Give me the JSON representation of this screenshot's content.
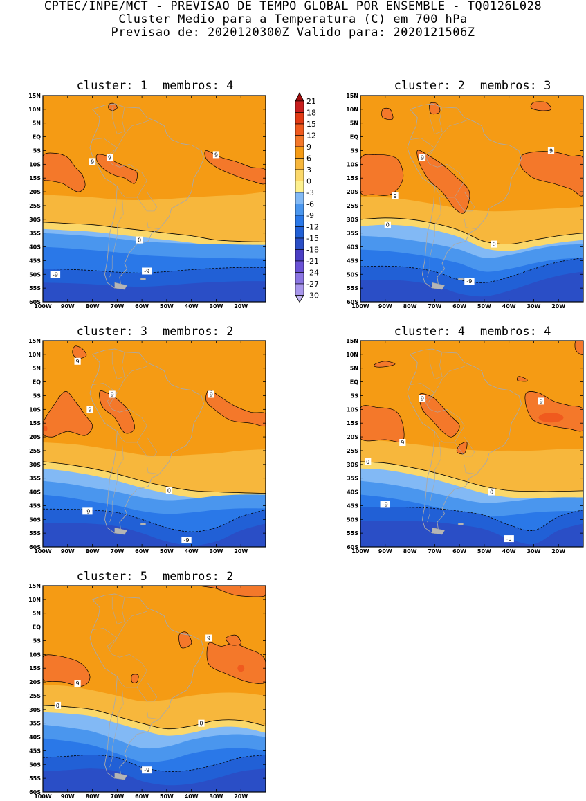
{
  "header": {
    "title_line1": "CPTEC/INPE/MCT - PREVISAO DE TEMPO GLOBAL POR ENSEMBLE - TQ0126L028",
    "title_line2": "Cluster Medio para a Temperatura (C) em 700 hPa",
    "title_line3": "Previsao de: 2020120300Z   Valido para: 2020121506Z"
  },
  "chart_data": {
    "type": "contour_map",
    "variable": "Temperatura (C) em 700 hPa",
    "x_ticks": [
      "100W",
      "90W",
      "80W",
      "70W",
      "60W",
      "50W",
      "40W",
      "30W",
      "20W"
    ],
    "y_ticks": [
      "15N",
      "10N",
      "5N",
      "EQ",
      "5S",
      "10S",
      "15S",
      "20S",
      "25S",
      "30S",
      "35S",
      "40S",
      "45S",
      "50S",
      "55S",
      "60S"
    ],
    "lon_range": [
      -100,
      -10
    ],
    "lat_range": [
      -60,
      15
    ],
    "colorbar": {
      "levels": [
        "21",
        "18",
        "15",
        "12",
        "9",
        "6",
        "3",
        "0",
        "-3",
        "-6",
        "-9",
        "-12",
        "-15",
        "-18",
        "-21",
        "-24",
        "-27",
        "-30"
      ],
      "colors": [
        "#a10d0d",
        "#c81e1e",
        "#e23a14",
        "#f05a1e",
        "#f4782a",
        "#f59b14",
        "#f7b73c",
        "#fbd86a",
        "#fdf08e",
        "#82b9f5",
        "#4a96ee",
        "#2a78e8",
        "#2160d6",
        "#2a4ec6",
        "#4a3ec4",
        "#6a52d6",
        "#8a74e2",
        "#a896ec",
        "#c6baf4"
      ]
    },
    "panels": [
      {
        "title": "cluster: 1",
        "members_label": "membros: 4",
        "contour_labels": [
          "9",
          "9",
          "9",
          "0",
          "-9",
          "-9"
        ],
        "boundaries_lat": {
          "b0": [
            -31,
            -31.5,
            -32,
            -33,
            -34,
            -35,
            -36,
            -37.5,
            -38,
            -38.2
          ],
          "b3": [
            -21,
            -21.5,
            -22,
            -22.8,
            -23,
            -22.6,
            -22,
            -21.5,
            -21,
            -20
          ],
          "b6": [
            -35,
            -35.5,
            -36.2,
            -37,
            -38,
            -38.5,
            -38.8,
            -39,
            -39.2,
            -39.3
          ],
          "b9": [
            -48,
            -48.2,
            -48.6,
            -49.2,
            -49.5,
            -49,
            -48.3,
            -47.8,
            -47.5,
            -47.5
          ]
        }
      },
      {
        "title": "cluster: 2",
        "members_label": "membros: 3",
        "contour_labels": [
          "9",
          "9",
          "0",
          "0",
          "-9"
        ],
        "boundaries_lat": {
          "b0": [
            -30,
            -29.5,
            -30,
            -31.5,
            -34,
            -38,
            -39,
            -37.5,
            -36,
            -35
          ],
          "b3": [
            -22,
            -22,
            -23,
            -24.5,
            -26,
            -27,
            -27,
            -26.5,
            -26,
            -25.5
          ],
          "b6": [
            -36,
            -36.5,
            -37.5,
            -39,
            -41,
            -44,
            -43,
            -41,
            -39.5,
            -39
          ],
          "b9": [
            -47.2,
            -47,
            -47.5,
            -49,
            -52,
            -53,
            -51,
            -48,
            -45.5,
            -44
          ]
        }
      },
      {
        "title": "cluster: 3",
        "members_label": "membros: 2",
        "contour_labels": [
          "9",
          "9",
          "9",
          "9",
          "0",
          "-9",
          "-9"
        ],
        "boundaries_lat": {
          "b0": [
            -29,
            -30,
            -31.5,
            -33.5,
            -36,
            -38,
            -39.5,
            -40,
            -40.3,
            -40.5
          ],
          "b3": [
            -22,
            -22.5,
            -23.5,
            -25,
            -26.5,
            -27,
            -26.5,
            -26,
            -25,
            -24.5
          ],
          "b6": [
            -36,
            -37,
            -38.5,
            -40,
            -42,
            -43,
            -42.5,
            -41.5,
            -41,
            -41
          ],
          "b9": [
            -46.2,
            -46.3,
            -46.6,
            -47.5,
            -50,
            -53,
            -54.5,
            -53,
            -49,
            -46.5
          ]
        }
      },
      {
        "title": "cluster: 4",
        "members_label": "membros: 4",
        "contour_labels": [
          "9",
          "9",
          "9",
          "0",
          "0",
          "-9",
          "-9"
        ],
        "boundaries_lat": {
          "b0": [
            -29,
            -29.5,
            -31,
            -33,
            -35.5,
            -38,
            -39.5,
            -39.8,
            -39.8,
            -39.6
          ],
          "b3": [
            -21,
            -21.5,
            -22.5,
            -23.5,
            -24.5,
            -25,
            -25,
            -25,
            -24.5,
            -24.5
          ],
          "b6": [
            -36,
            -37,
            -38.5,
            -40.5,
            -42.5,
            -44,
            -43.5,
            -42.5,
            -42,
            -42
          ],
          "b9": [
            -45.5,
            -45.5,
            -45.6,
            -46,
            -47,
            -48.5,
            -52,
            -54,
            -49,
            -46.5
          ]
        }
      },
      {
        "title": "cluster: 5",
        "members_label": "membros: 2",
        "contour_labels": [
          "9",
          "9",
          "0",
          "0",
          "-9"
        ],
        "boundaries_lat": {
          "b0": [
            -28.5,
            -29,
            -30,
            -32.5,
            -35,
            -37,
            -36,
            -34,
            -34,
            -36
          ],
          "b3": [
            -21,
            -21.5,
            -23,
            -25,
            -27,
            -26.5,
            -25,
            -24,
            -24,
            -25
          ],
          "b6": [
            -35.5,
            -36.5,
            -38,
            -41,
            -44,
            -43.5,
            -41,
            -39.5,
            -39,
            -40
          ],
          "b9": [
            -47.5,
            -47,
            -46.5,
            -47.5,
            -51,
            -52.5,
            -52,
            -50,
            -47.5,
            -46.5
          ]
        }
      }
    ]
  }
}
